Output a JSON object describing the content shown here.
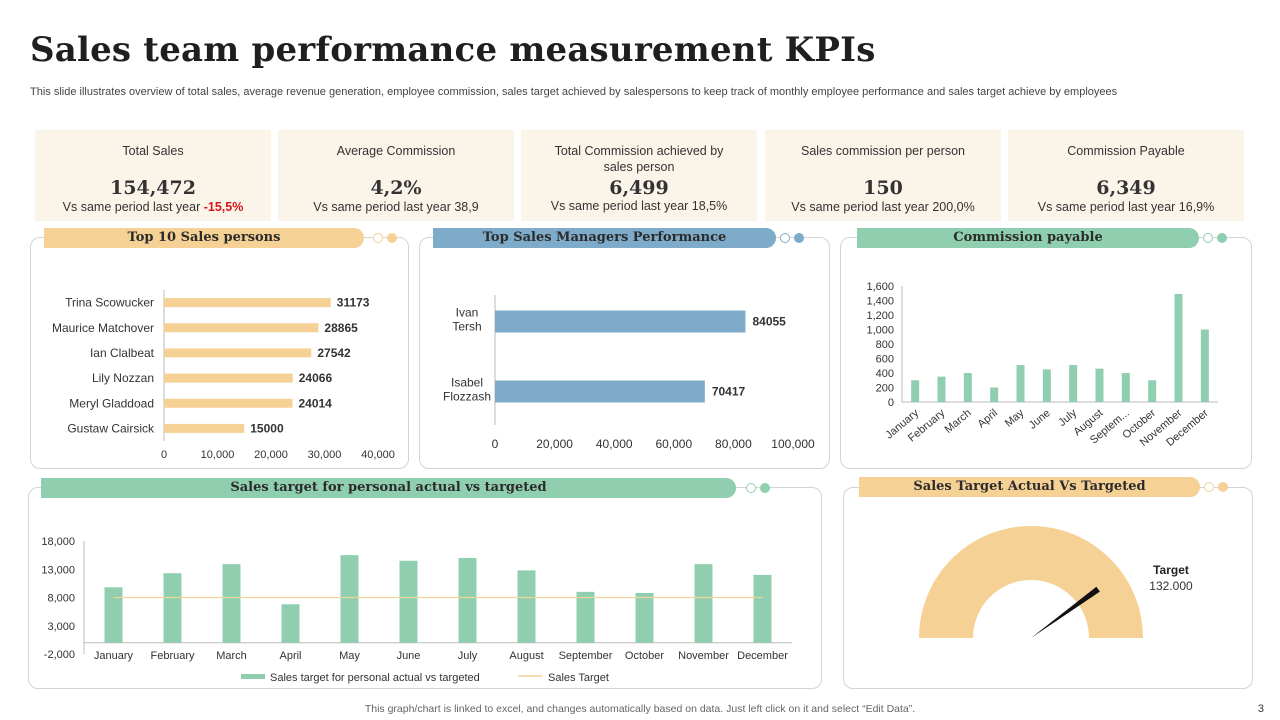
{
  "title": "Sales team performance measurement KPIs",
  "subtitle": "This slide illustrates overview of total sales, average revenue generation, employee commission, sales target achieved by salespersons to keep track of monthly employee performance and sales target achieve by employees",
  "kpis": [
    {
      "label": "Total Sales",
      "value": "154,472",
      "compare_prefix": "Vs same period  last year ",
      "compare_value": "-15,5%"
    },
    {
      "label": "Average  Commission",
      "value": "4,2%",
      "compare_prefix": "Vs same period  last year ",
      "compare_value": "38,9"
    },
    {
      "label": "Total Commission achieved by sales person",
      "value": "6,499",
      "compare_prefix": "Vs same period  last year ",
      "compare_value": "18,5%"
    },
    {
      "label": "Sales commission per person",
      "value": "150",
      "compare_prefix": "Vs same period  last year ",
      "compare_value": "200,0%"
    },
    {
      "label": "Commission Payable",
      "value": "6,349",
      "compare_prefix": "Vs same period  last year ",
      "compare_value": "16,9%"
    }
  ],
  "panels": {
    "top_sales": "Top 10 Sales persons",
    "managers": "Top Sales Managers Performance",
    "commission": "Commission payable",
    "target_personal": "Sales target for personal actual vs targeted",
    "target_gauge": "Sales Target Actual Vs Targeted"
  },
  "colors": {
    "beige": "#f6d195",
    "blue": "#7eabc9",
    "green": "#8fcfb0",
    "kpi_bg": "#fbf4e9",
    "negative": "#d8141a"
  },
  "footer": "This graph/chart is linked to excel,  and changes automatically based on data. Just left click on it and select “Edit Data”.",
  "page_number": "3",
  "chart_data": [
    {
      "id": "top_sales",
      "type": "bar",
      "orientation": "horizontal",
      "title": "Top 10 Sales persons",
      "categories": [
        "Trina Scowucker",
        "Maurice Matchover",
        "Ian Clalbeat",
        "Lily Nozzan",
        "Meryl Gladdoad",
        "Gustaw Cairsick"
      ],
      "values": [
        31173,
        28865,
        27542,
        24066,
        24014,
        15000
      ],
      "xlim": [
        0,
        40000
      ],
      "ticks": [
        "0",
        "10,000",
        "20,000",
        "30,000",
        "40,000"
      ]
    },
    {
      "id": "managers",
      "type": "bar",
      "orientation": "horizontal",
      "title": "Top Sales Managers Performance",
      "categories": [
        "Ivan Tersh",
        "Isabel Flozzash"
      ],
      "category_lines": [
        [
          "Ivan",
          "Tersh"
        ],
        [
          "Isabel",
          "Flozzash"
        ]
      ],
      "values": [
        84055,
        70417
      ],
      "xlim": [
        0,
        100000
      ],
      "ticks": [
        "0",
        "20,000",
        "40,000",
        "60,000",
        "80,000",
        "100,000"
      ]
    },
    {
      "id": "commission",
      "type": "bar",
      "title": "Commission payable",
      "categories": [
        "January",
        "February",
        "March",
        "April",
        "May",
        "June",
        "July",
        "August",
        "Septem...",
        "October",
        "November",
        "December"
      ],
      "values": [
        300,
        350,
        400,
        200,
        510,
        450,
        510,
        460,
        400,
        300,
        1490,
        1000
      ],
      "ylim": [
        0,
        1600
      ],
      "ticks": [
        "0",
        "200",
        "400",
        "600",
        "800",
        "1,000",
        "1,200",
        "1,400",
        "1,600"
      ]
    },
    {
      "id": "target_personal",
      "type": "bar",
      "title": "Sales target for personal actual vs targeted",
      "categories": [
        "January",
        "February",
        "March",
        "April",
        "May",
        "June",
        "July",
        "August",
        "September",
        "October",
        "November",
        "December"
      ],
      "series": [
        {
          "name": "Sales target for personal actual vs targeted",
          "type": "bar",
          "values": [
            9800,
            12300,
            13900,
            6800,
            15500,
            14500,
            15000,
            12800,
            9000,
            8800,
            13900,
            12000
          ]
        },
        {
          "name": "Sales Target",
          "type": "line",
          "values": [
            8000,
            8000,
            8000,
            8000,
            8000,
            8000,
            8000,
            8000,
            8000,
            8000,
            8000,
            8000
          ]
        }
      ],
      "ylim": [
        -2000,
        18000
      ],
      "ticks": [
        "-2,000",
        "3,000",
        "8,000",
        "13,000",
        "18,000"
      ]
    },
    {
      "id": "target_gauge",
      "type": "gauge",
      "title": "Sales Target Actual Vs Targeted",
      "label": "Target",
      "target_text": "132.000",
      "needle_fraction": 0.8
    }
  ]
}
